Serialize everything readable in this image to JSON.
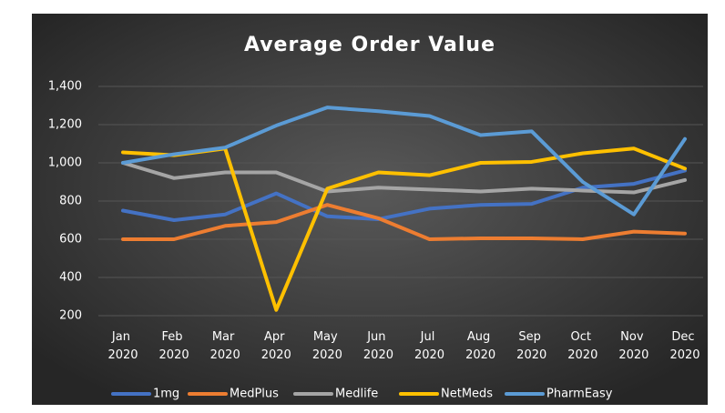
{
  "chart_data": {
    "type": "line",
    "title": "Average Order Value",
    "categories": [
      "Jan 2020",
      "Feb 2020",
      "Mar 2020",
      "Apr 2020",
      "May 2020",
      "Jun 2020",
      "Jul 2020",
      "Aug 2020",
      "Sep 2020",
      "Oct 2020",
      "Nov 2020",
      "Dec 2020"
    ],
    "ylim": [
      200,
      1400
    ],
    "yticks": [
      200,
      400,
      600,
      800,
      {
        "value": 1000,
        "label": "1,000"
      },
      {
        "value": 1200,
        "label": "1,200"
      },
      {
        "value": 1400,
        "label": "1,400"
      }
    ],
    "legend": "bottom",
    "series": [
      {
        "name": "1mg",
        "color": "#4472c4",
        "values": [
          750,
          700,
          730,
          840,
          720,
          705,
          760,
          780,
          785,
          870,
          890,
          960
        ]
      },
      {
        "name": "MedPlus",
        "color": "#ed7d31",
        "values": [
          600,
          600,
          670,
          690,
          780,
          710,
          600,
          605,
          605,
          600,
          640,
          630
        ]
      },
      {
        "name": "Medlife",
        "color": "#a5a5a5",
        "values": [
          1000,
          920,
          950,
          950,
          850,
          870,
          860,
          850,
          865,
          855,
          845,
          910
        ]
      },
      {
        "name": "NetMeds",
        "color": "#ffc000",
        "values": [
          1055,
          1040,
          1075,
          230,
          865,
          950,
          935,
          1000,
          1005,
          1050,
          1075,
          970
        ]
      },
      {
        "name": "PharmEasy",
        "color": "#5b9bd5",
        "values": [
          1000,
          1045,
          1080,
          1195,
          1290,
          1270,
          1245,
          1145,
          1165,
          900,
          730,
          1125
        ]
      }
    ]
  }
}
